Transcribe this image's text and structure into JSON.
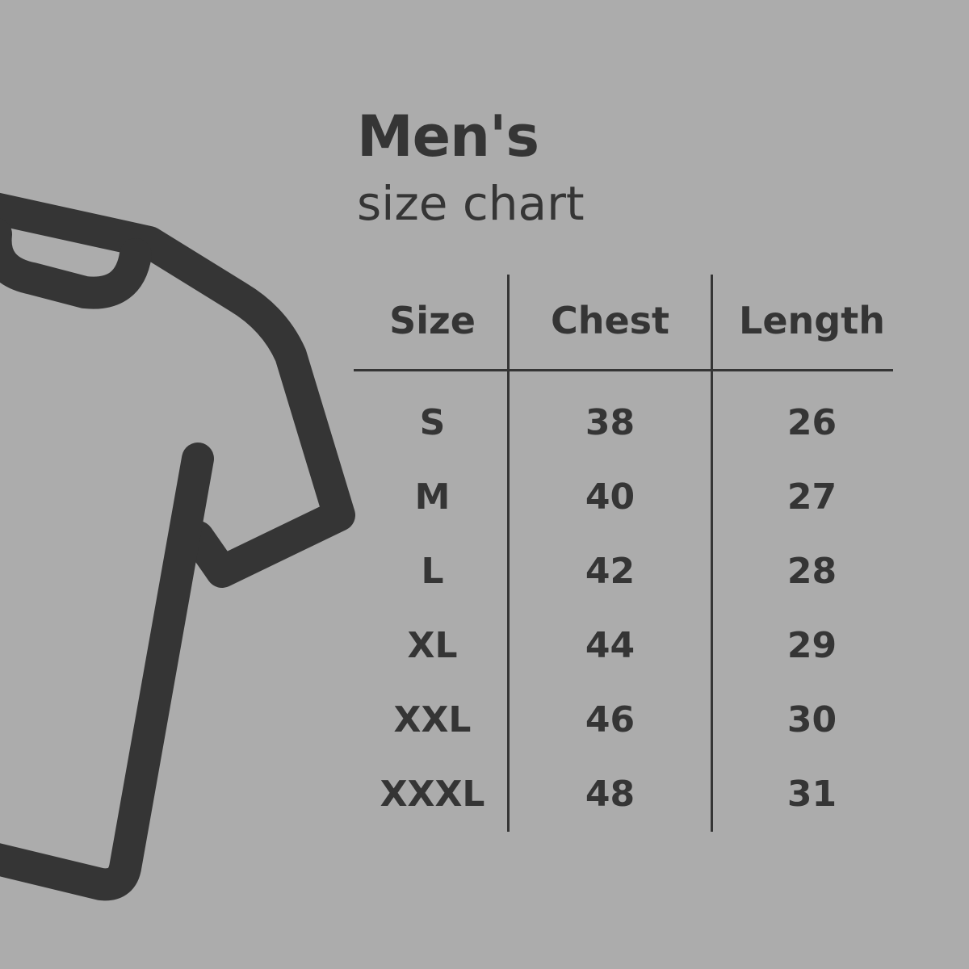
{
  "title": "Men's",
  "subtitle": "size chart",
  "icon": "t-shirt-icon",
  "colors": {
    "background": "#acacac",
    "ink": "#353535"
  },
  "table": {
    "headers": [
      "Size",
      "Chest",
      "Length"
    ],
    "rows": [
      [
        "S",
        "38",
        "26"
      ],
      [
        "M",
        "40",
        "27"
      ],
      [
        "L",
        "42",
        "28"
      ],
      [
        "XL",
        "44",
        "29"
      ],
      [
        "XXL",
        "46",
        "30"
      ],
      [
        "XXXL",
        "48",
        "31"
      ]
    ]
  }
}
